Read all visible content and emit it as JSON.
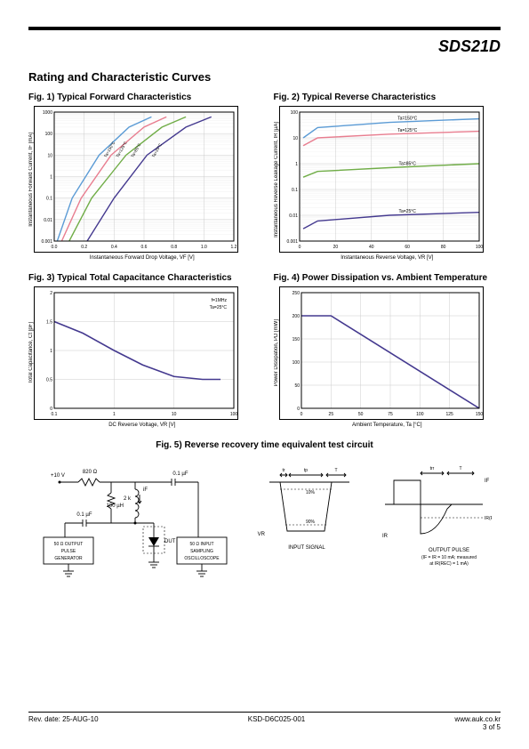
{
  "partNumber": "SDS21D",
  "sectionTitle": "Rating and Characteristic Curves",
  "fig1": {
    "title": "Fig. 1) Typical Forward Characteristics",
    "ylabel": "Instantaneous Forward Current, IF [mA]",
    "xlabel": "Instantaneous Forward Drop Voltage, VF [V]",
    "type": "line-loglin",
    "xlim": [
      0,
      1.2
    ],
    "xtick_step": 0.2,
    "ylim": [
      0.001,
      1000
    ],
    "yscale": "log",
    "yticks": [
      0.001,
      0.01,
      0.1,
      1,
      10,
      100,
      1000
    ],
    "grid_color": "#ccc",
    "series": [
      {
        "label": "Ta=150°C",
        "color": "#5b9bd5",
        "points": [
          [
            0.02,
            0.001
          ],
          [
            0.12,
            0.1
          ],
          [
            0.3,
            10
          ],
          [
            0.5,
            200
          ],
          [
            0.65,
            600
          ]
        ]
      },
      {
        "label": "Ta=125°C",
        "color": "#e87d8f",
        "points": [
          [
            0.05,
            0.001
          ],
          [
            0.18,
            0.1
          ],
          [
            0.38,
            10
          ],
          [
            0.6,
            200
          ],
          [
            0.75,
            600
          ]
        ]
      },
      {
        "label": "Ta=85°C",
        "color": "#70ad47",
        "points": [
          [
            0.1,
            0.001
          ],
          [
            0.25,
            0.1
          ],
          [
            0.48,
            10
          ],
          [
            0.72,
            200
          ],
          [
            0.88,
            600
          ]
        ]
      },
      {
        "label": "Ta=25°C",
        "color": "#44398f",
        "points": [
          [
            0.22,
            0.001
          ],
          [
            0.4,
            0.1
          ],
          [
            0.62,
            10
          ],
          [
            0.88,
            200
          ],
          [
            1.05,
            600
          ]
        ]
      }
    ]
  },
  "fig2": {
    "title": "Fig. 2) Typical Reverse Characteristics",
    "ylabel": "Instantaneous Reverse Leakage Current, IR [µA]",
    "xlabel": "Instantaneous Reverse Voltage, VR [V]",
    "type": "line-loglin",
    "xlim": [
      0,
      100
    ],
    "xtick_step": 20,
    "ylim": [
      0.001,
      100
    ],
    "yscale": "log",
    "yticks": [
      0.001,
      0.01,
      0.1,
      1,
      10,
      100
    ],
    "grid_color": "#ccc",
    "series": [
      {
        "label": "Ta=150°C",
        "color": "#5b9bd5",
        "points": [
          [
            2,
            10
          ],
          [
            10,
            25
          ],
          [
            50,
            40
          ],
          [
            100,
            55
          ]
        ]
      },
      {
        "label": "Ta=125°C",
        "color": "#e87d8f",
        "points": [
          [
            2,
            5
          ],
          [
            10,
            10
          ],
          [
            50,
            14
          ],
          [
            100,
            18
          ]
        ]
      },
      {
        "label": "Ta=85°C",
        "color": "#70ad47",
        "points": [
          [
            2,
            0.3
          ],
          [
            10,
            0.5
          ],
          [
            50,
            0.7
          ],
          [
            100,
            1
          ]
        ]
      },
      {
        "label": "Ta=25°C",
        "color": "#44398f",
        "points": [
          [
            2,
            0.003
          ],
          [
            10,
            0.006
          ],
          [
            50,
            0.01
          ],
          [
            100,
            0.013
          ]
        ]
      }
    ]
  },
  "fig3": {
    "title": "Fig. 3) Typical Total Capacitance Characteristics",
    "ylabel": "Total Capacitance, Ct [pF]",
    "xlabel": "DC Reverse Voltage, VR [V]",
    "xlim": [
      0.1,
      100
    ],
    "xscale": "log",
    "ylim": [
      0,
      2
    ],
    "ytick_step": 0.5,
    "xticks": [
      0.1,
      1,
      10,
      100
    ],
    "annotation": "f=1MHz\nTa=25°C",
    "color": "#44398f",
    "points": [
      [
        0.1,
        1.5
      ],
      [
        0.3,
        1.3
      ],
      [
        1,
        1.0
      ],
      [
        3,
        0.75
      ],
      [
        10,
        0.55
      ],
      [
        30,
        0.5
      ],
      [
        60,
        0.5
      ]
    ]
  },
  "fig4": {
    "title": "Fig. 4) Power Dissipation vs. Ambient Temperature",
    "ylabel": "Power Dissipation, PD [mW]",
    "xlabel": "Ambient Temperature, Ta [°C]",
    "xlim": [
      0,
      150
    ],
    "xtick_step": 25,
    "ylim": [
      0,
      250
    ],
    "ytick_step": 50,
    "color": "#44398f",
    "points": [
      [
        0,
        200
      ],
      [
        25,
        200
      ],
      [
        150,
        0
      ]
    ]
  },
  "fig5": {
    "title": "Fig. 5) Reverse recovery time equivalent test circuit",
    "labels": {
      "r820": "820 Ω",
      "v10": "+10 V",
      "r2k": "2 k",
      "l100": "100 µH",
      "c01a": "0.1 µF",
      "c01b": "0.1 µF",
      "dut": "DUT",
      "gen": "50 Ω OUTPUT PULSE GENERATOR",
      "scope": "50 Ω INPUT SAMPLING OSCILLOSCOPE",
      "input_sig": "INPUT SIGNAL",
      "output_pulse": "OUTPUT PULSE",
      "cond": "(IF = IR = 10 mA; measured at IR(REC) = 1 mA)",
      "irrec": "IR(REC) = 1 mA",
      "vr": "VR",
      "if": "IF",
      "ir": "IR",
      "pct10": "10%",
      "pct90": "90%",
      "t": "T",
      "tp": "tp",
      "tr": "tr",
      "trr": "trr"
    }
  },
  "footer": {
    "rev": "Rev. date: 25-AUG-10",
    "doc": "KSD-D6C025-001",
    "site": "www.auk.co.kr",
    "page": "3 of 5"
  }
}
